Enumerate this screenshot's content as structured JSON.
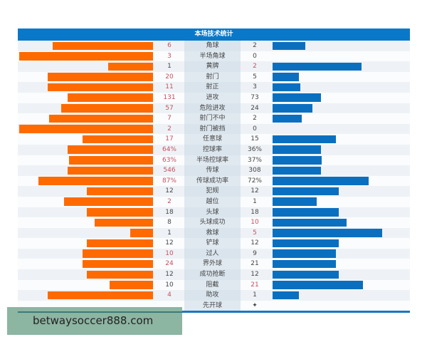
{
  "title": "本场技术统计",
  "colors": {
    "home": "#ff6a00",
    "away": "#0b6fc0",
    "highlight": "#c85060",
    "header": "#0a78c8"
  },
  "rows": [
    {
      "label": "角球",
      "home": "6",
      "away": "2",
      "home_bar": 0.74,
      "away_bar": 0.24,
      "home_hl": true,
      "away_hl": false
    },
    {
      "label": "半场角球",
      "home": "3",
      "away": "0",
      "home_bar": 0.99,
      "away_bar": 0,
      "home_hl": true,
      "away_hl": false
    },
    {
      "label": "黄牌",
      "home": "1",
      "away": "2",
      "home_bar": 0.33,
      "away_bar": 0.65,
      "home_hl": false,
      "away_hl": true
    },
    {
      "label": "射门",
      "home": "20",
      "away": "5",
      "home_bar": 0.78,
      "away_bar": 0.19,
      "home_hl": true,
      "away_hl": false
    },
    {
      "label": "射正",
      "home": "11",
      "away": "3",
      "home_bar": 0.78,
      "away_bar": 0.2,
      "home_hl": true,
      "away_hl": false
    },
    {
      "label": "进攻",
      "home": "131",
      "away": "73",
      "home_bar": 0.63,
      "away_bar": 0.35,
      "home_hl": true,
      "away_hl": false
    },
    {
      "label": "危险进攻",
      "home": "57",
      "away": "24",
      "home_bar": 0.68,
      "away_bar": 0.29,
      "home_hl": true,
      "away_hl": false
    },
    {
      "label": "射门不中",
      "home": "7",
      "away": "2",
      "home_bar": 0.77,
      "away_bar": 0.21,
      "home_hl": true,
      "away_hl": false
    },
    {
      "label": "射门被挡",
      "home": "2",
      "away": "0",
      "home_bar": 0.99,
      "away_bar": 0,
      "home_hl": true,
      "away_hl": false
    },
    {
      "label": "任意球",
      "home": "17",
      "away": "15",
      "home_bar": 0.52,
      "away_bar": 0.46,
      "home_hl": true,
      "away_hl": false
    },
    {
      "label": "控球率",
      "home": "64%",
      "away": "36%",
      "home_bar": 0.63,
      "away_bar": 0.35,
      "home_hl": true,
      "away_hl": false
    },
    {
      "label": "半场控球率",
      "home": "63%",
      "away": "37%",
      "home_bar": 0.62,
      "away_bar": 0.36,
      "home_hl": true,
      "away_hl": false
    },
    {
      "label": "传球",
      "home": "546",
      "away": "308",
      "home_bar": 0.63,
      "away_bar": 0.35,
      "home_hl": true,
      "away_hl": false
    },
    {
      "label": "传球成功率",
      "home": "87%",
      "away": "72%",
      "home_bar": 0.85,
      "away_bar": 0.7,
      "home_hl": true,
      "away_hl": false
    },
    {
      "label": "犯规",
      "home": "12",
      "away": "12",
      "home_bar": 0.49,
      "away_bar": 0.48,
      "home_hl": false,
      "away_hl": false
    },
    {
      "label": "越位",
      "home": "2",
      "away": "1",
      "home_bar": 0.66,
      "away_bar": 0.32,
      "home_hl": true,
      "away_hl": false
    },
    {
      "label": "头球",
      "home": "18",
      "away": "18",
      "home_bar": 0.49,
      "away_bar": 0.48,
      "home_hl": false,
      "away_hl": false
    },
    {
      "label": "头球成功",
      "home": "8",
      "away": "10",
      "home_bar": 0.43,
      "away_bar": 0.54,
      "home_hl": false,
      "away_hl": true
    },
    {
      "label": "救球",
      "home": "1",
      "away": "5",
      "home_bar": 0.17,
      "away_bar": 0.8,
      "home_hl": false,
      "away_hl": true
    },
    {
      "label": "铲球",
      "home": "12",
      "away": "12",
      "home_bar": 0.49,
      "away_bar": 0.48,
      "home_hl": false,
      "away_hl": false
    },
    {
      "label": "过人",
      "home": "10",
      "away": "9",
      "home_bar": 0.52,
      "away_bar": 0.46,
      "home_hl": true,
      "away_hl": false
    },
    {
      "label": "界外球",
      "home": "24",
      "away": "21",
      "home_bar": 0.52,
      "away_bar": 0.46,
      "home_hl": true,
      "away_hl": false
    },
    {
      "label": "成功抢断",
      "home": "12",
      "away": "12",
      "home_bar": 0.49,
      "away_bar": 0.48,
      "home_hl": false,
      "away_hl": false
    },
    {
      "label": "阻截",
      "home": "10",
      "away": "21",
      "home_bar": 0.32,
      "away_bar": 0.66,
      "home_hl": false,
      "away_hl": true
    },
    {
      "label": "助攻",
      "home": "4",
      "away": "1",
      "home_bar": 0.78,
      "away_bar": 0.19,
      "home_hl": true,
      "away_hl": false
    },
    {
      "label": "先开球",
      "home": "",
      "away": "✦",
      "home_bar": 0,
      "away_bar": 0,
      "home_hl": false,
      "away_hl": false
    }
  ],
  "watermark": "betwaysoccer888.com"
}
